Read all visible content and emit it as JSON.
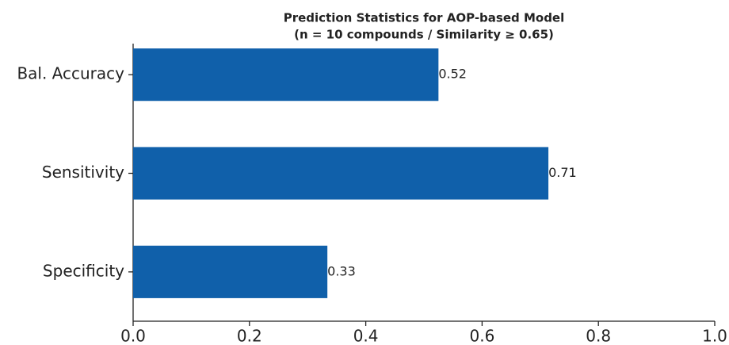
{
  "chart_data": {
    "type": "barh",
    "title": "Prediction Statistics for AOP-based Model",
    "subtitle": "(n = 10 compounds / Similarity ≥ 0.65)",
    "categories": [
      "Bal. Accuracy",
      "Sensitivity",
      "Specificity"
    ],
    "values": [
      0.525,
      0.714,
      0.334
    ],
    "value_labels": [
      "0.52",
      "0.71",
      "0.33"
    ],
    "color": "#1060aa",
    "xlim": [
      0,
      1
    ],
    "xticks": [
      {
        "value": 0,
        "label": "0.0"
      },
      0.2,
      0.4,
      0.6,
      0.8,
      {
        "value": 1,
        "label": "1.0"
      }
    ]
  }
}
